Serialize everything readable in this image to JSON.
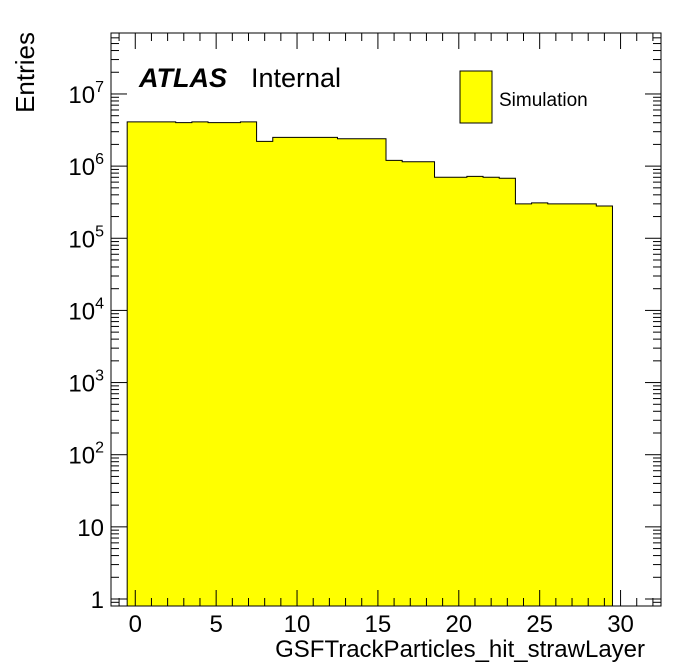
{
  "chart_data": {
    "type": "bar",
    "style": "histogram",
    "log_y": true,
    "xlabel": "GSFTrackParticles_hit_strawLayer",
    "ylabel": "Entries",
    "xlim": [
      -1.5,
      32.5
    ],
    "ylim": [
      0.8,
      70000000
    ],
    "x_ticks": [
      0,
      5,
      10,
      15,
      20,
      25,
      30
    ],
    "y_ticks": [
      {
        "value": 1,
        "base": "1",
        "exp": ""
      },
      {
        "value": 10,
        "base": "10",
        "exp": ""
      },
      {
        "value": 100,
        "base": "10",
        "exp": "2"
      },
      {
        "value": 1000,
        "base": "10",
        "exp": "3"
      },
      {
        "value": 10000,
        "base": "10",
        "exp": "4"
      },
      {
        "value": 100000,
        "base": "10",
        "exp": "5"
      },
      {
        "value": 1000000,
        "base": "10",
        "exp": "6"
      },
      {
        "value": 10000000,
        "base": "10",
        "exp": "7"
      }
    ],
    "series": [
      {
        "name": "Simulation",
        "color": "#ffff00",
        "bin_low_edges": [
          -0.5,
          0.5,
          1.5,
          2.5,
          3.5,
          4.5,
          5.5,
          6.5,
          7.5,
          8.5,
          9.5,
          10.5,
          11.5,
          12.5,
          13.5,
          14.5,
          15.5,
          16.5,
          17.5,
          18.5,
          19.5,
          20.5,
          21.5,
          22.5,
          23.5,
          24.5,
          25.5,
          26.5,
          27.5,
          28.5
        ],
        "bin_high_edges": [
          0.5,
          1.5,
          2.5,
          3.5,
          4.5,
          5.5,
          6.5,
          7.5,
          8.5,
          9.5,
          10.5,
          11.5,
          12.5,
          13.5,
          14.5,
          15.5,
          16.5,
          17.5,
          18.5,
          19.5,
          20.5,
          21.5,
          22.5,
          23.5,
          24.5,
          25.5,
          26.5,
          27.5,
          28.5,
          29.5
        ],
        "values": [
          4100000,
          4100000,
          4100000,
          4000000,
          4100000,
          4000000,
          4000000,
          4100000,
          2200000,
          2500000,
          2500000,
          2500000,
          2500000,
          2400000,
          2400000,
          2400000,
          1200000,
          1150000,
          1150000,
          700000,
          700000,
          720000,
          700000,
          680000,
          300000,
          310000,
          300000,
          300000,
          300000,
          280000
        ]
      }
    ]
  },
  "atlas_label": "ATLAS",
  "atlas_sublabel": "Internal"
}
